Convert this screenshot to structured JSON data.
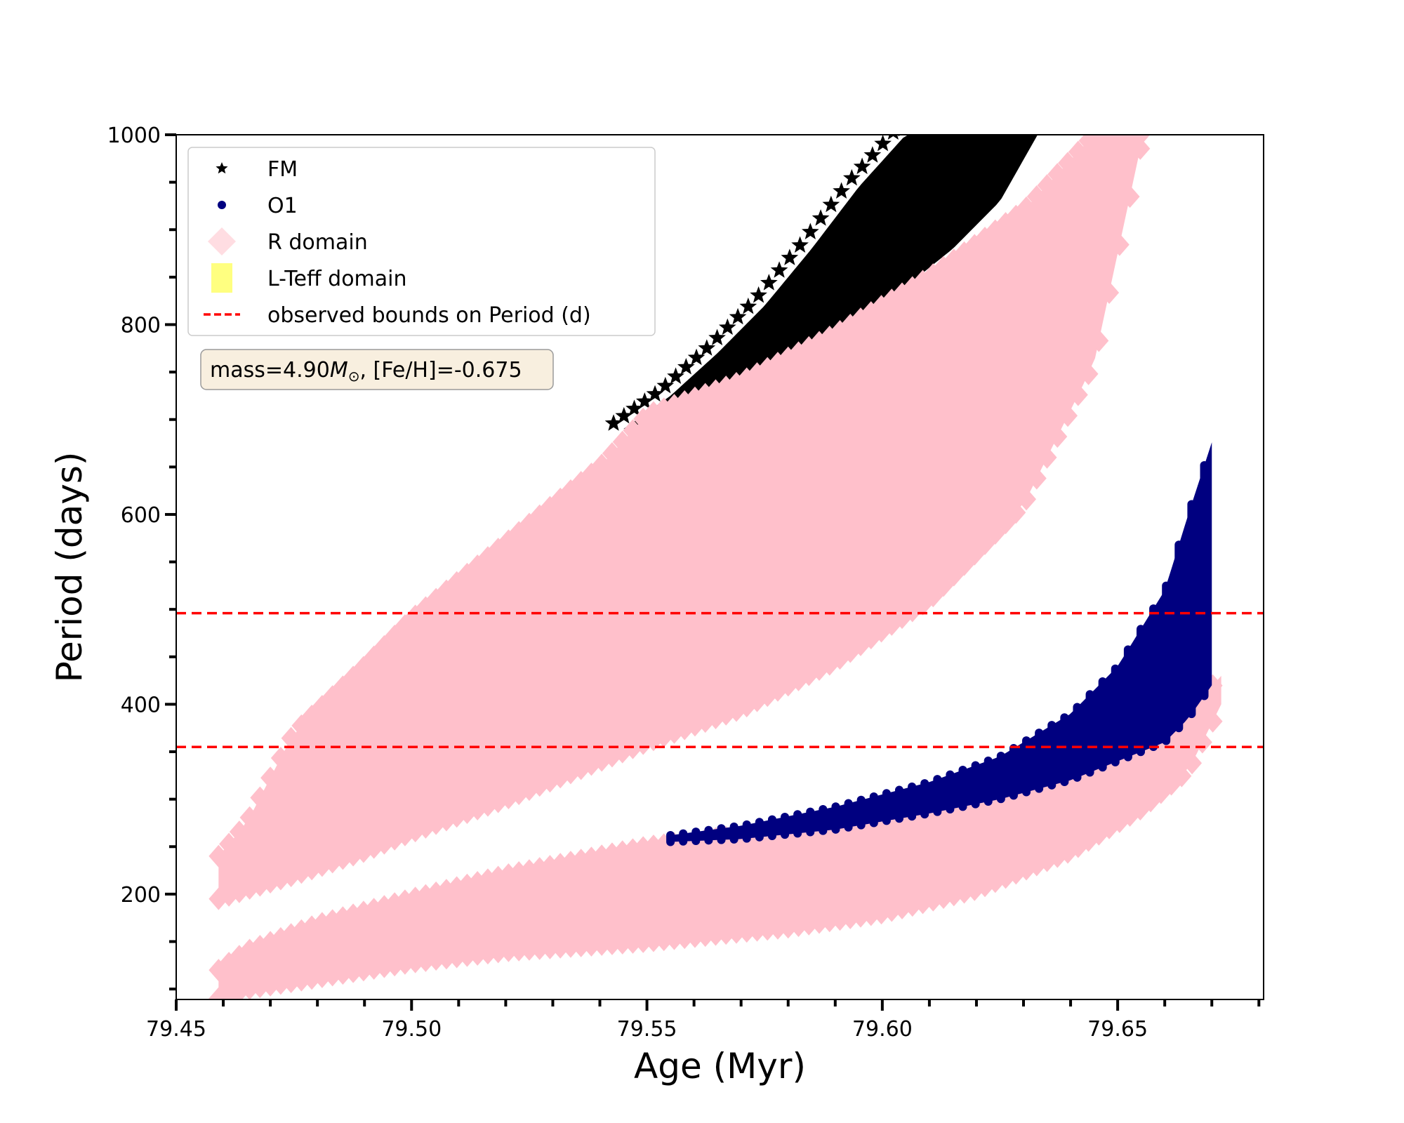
{
  "chart_data": {
    "type": "scatter",
    "title": "",
    "xlabel": "Age (Myr)",
    "ylabel": "Period (days)",
    "xlim": [
      79.45,
      79.681
    ],
    "ylim": [
      89,
      1000
    ],
    "grid": false,
    "x_ticks": [
      79.45,
      79.5,
      79.55,
      79.6,
      79.65
    ],
    "x_tick_labels": [
      "79.45",
      "79.50",
      "79.55",
      "79.60",
      "79.65"
    ],
    "x_minor_step": 0.01,
    "y_ticks": [
      200,
      400,
      600,
      800,
      1000
    ],
    "y_tick_labels": [
      "200",
      "400",
      "600",
      "800",
      "1000"
    ],
    "y_minor_step": 50,
    "legend": {
      "position": "top-left",
      "entries": [
        {
          "label": "FM",
          "marker": "star",
          "color": "#000000"
        },
        {
          "label": "O1",
          "marker": "circle",
          "color": "#000080"
        },
        {
          "label": "R domain",
          "marker": "diamond",
          "color": "#ffc0cb"
        },
        {
          "label": "L-Teff domain",
          "marker": "square",
          "color": "#ffff80"
        },
        {
          "label": "observed bounds on Period (d)",
          "marker": "dashed-line",
          "color": "#ff0000"
        }
      ]
    },
    "annotation": {
      "text_prefix": "mass=4.90",
      "text_symbol": "M",
      "text_subscript": "⊙",
      "text_suffix": ", [Fe/H]=-0.675"
    },
    "hlines": [
      {
        "name": "upper-bound",
        "y": 496,
        "color": "#ff0000",
        "style": "dashed"
      },
      {
        "name": "lower-bound",
        "y": 355,
        "color": "#ff0000",
        "style": "dashed"
      }
    ],
    "series": [
      {
        "name": "FM",
        "marker": "star",
        "color": "#000000",
        "envelope": {
          "x": [
            79.545,
            79.555,
            79.565,
            79.575,
            79.585,
            79.595,
            79.605,
            79.615,
            79.625,
            79.633
          ],
          "upper": [
            690,
            725,
            770,
            820,
            880,
            945,
            1000,
            1000,
            1000,
            1000
          ],
          "lower": [
            690,
            705,
            725,
            750,
            775,
            805,
            840,
            880,
            930,
            1000
          ]
        }
      },
      {
        "name": "R domain (FM band)",
        "marker": "diamond",
        "color": "#ffc0cb",
        "envelope": {
          "x": [
            79.459,
            79.465,
            79.475,
            79.49,
            79.5,
            79.52,
            79.54,
            79.55,
            79.57,
            79.59,
            79.61,
            79.63,
            79.645,
            79.655
          ],
          "upper": [
            240,
            275,
            370,
            440,
            490,
            570,
            650,
            705,
            740,
            790,
            850,
            920,
            1000,
            1000
          ],
          "lower": [
            195,
            205,
            220,
            245,
            265,
            300,
            340,
            360,
            395,
            445,
            510,
            610,
            760,
            990
          ]
        }
      },
      {
        "name": "O1",
        "marker": "circle",
        "color": "#000080",
        "envelope": {
          "x": [
            79.555,
            79.57,
            79.59,
            79.61,
            79.625,
            79.64,
            79.65,
            79.66,
            79.665,
            79.67
          ],
          "upper": [
            262,
            272,
            292,
            318,
            345,
            390,
            440,
            520,
            600,
            676
          ],
          "lower": [
            255,
            258,
            268,
            285,
            300,
            320,
            340,
            360,
            385,
            420
          ]
        }
      },
      {
        "name": "R domain (O1 band)",
        "marker": "diamond",
        "color": "#ffc0cb",
        "envelope": {
          "x": [
            79.459,
            79.465,
            79.48,
            79.5,
            79.52,
            79.55,
            79.58,
            79.6,
            79.62,
            79.64,
            79.655,
            79.665,
            79.672
          ],
          "upper": [
            120,
            140,
            168,
            195,
            220,
            250,
            268,
            280,
            298,
            322,
            345,
            390,
            430
          ],
          "lower": [
            90,
            100,
            112,
            128,
            140,
            150,
            165,
            180,
            205,
            245,
            290,
            330,
            400
          ]
        }
      }
    ]
  }
}
